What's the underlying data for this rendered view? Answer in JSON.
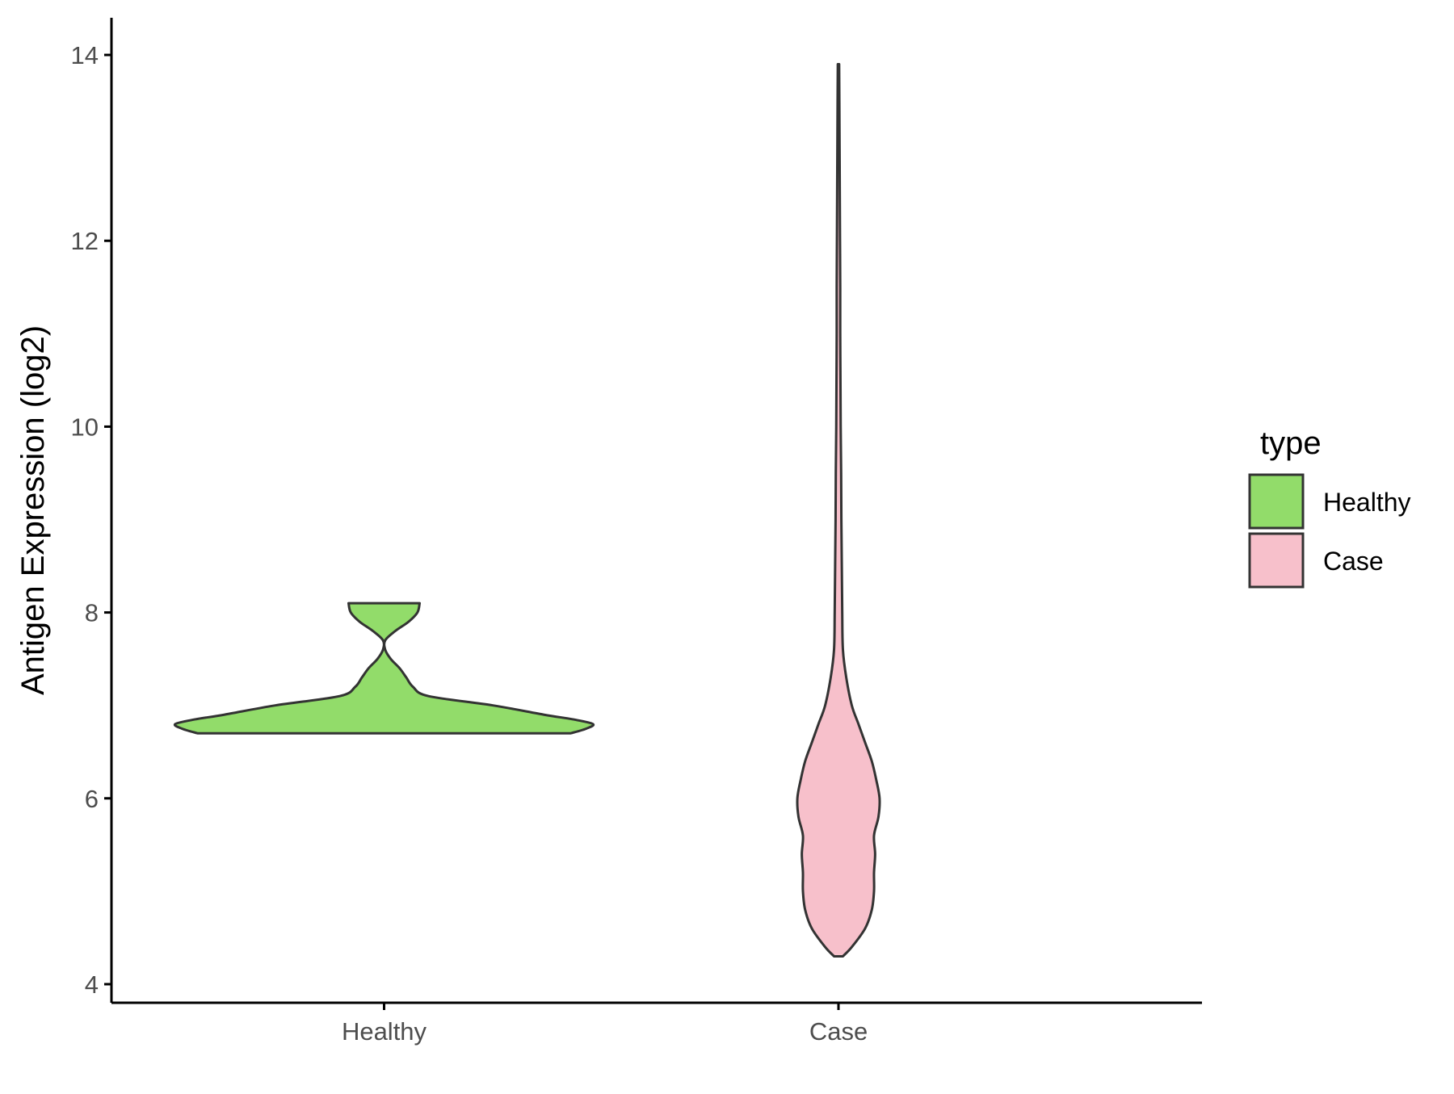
{
  "chart_data": {
    "type": "violin",
    "xlabel": "",
    "ylabel": "Antigen Expression (log2)",
    "ylim": [
      3.8,
      14.4
    ],
    "y_ticks": [
      4,
      6,
      8,
      10,
      12,
      14
    ],
    "categories": [
      "Healthy",
      "Case"
    ],
    "grid": false,
    "legend": {
      "title": "type",
      "placement": "right",
      "items": [
        {
          "label": "Healthy",
          "color": "#92dc6a"
        },
        {
          "label": "Case",
          "color": "#f7c0cb"
        }
      ]
    },
    "series": [
      {
        "name": "Healthy",
        "color": "#92dc6a",
        "min": 6.7,
        "max": 8.1,
        "density_profile": [
          [
            6.7,
            0.84
          ],
          [
            6.75,
            0.91
          ],
          [
            6.8,
            0.94
          ],
          [
            6.85,
            0.85
          ],
          [
            6.9,
            0.72
          ],
          [
            7.0,
            0.49
          ],
          [
            7.1,
            0.2
          ],
          [
            7.2,
            0.13
          ],
          [
            7.3,
            0.1
          ],
          [
            7.4,
            0.07
          ],
          [
            7.5,
            0.03
          ],
          [
            7.6,
            0.005
          ],
          [
            7.7,
            0.005
          ],
          [
            7.8,
            0.05
          ],
          [
            7.9,
            0.11
          ],
          [
            8.0,
            0.15
          ],
          [
            8.1,
            0.16
          ]
        ]
      },
      {
        "name": "Case",
        "color": "#f7c0cb",
        "min": 4.3,
        "max": 13.9,
        "density_profile": [
          [
            4.3,
            0.02
          ],
          [
            4.4,
            0.06
          ],
          [
            4.6,
            0.12
          ],
          [
            4.8,
            0.15
          ],
          [
            5.0,
            0.16
          ],
          [
            5.2,
            0.16
          ],
          [
            5.4,
            0.165
          ],
          [
            5.6,
            0.16
          ],
          [
            5.8,
            0.18
          ],
          [
            6.0,
            0.185
          ],
          [
            6.2,
            0.17
          ],
          [
            6.4,
            0.15
          ],
          [
            6.6,
            0.12
          ],
          [
            6.8,
            0.09
          ],
          [
            7.0,
            0.06
          ],
          [
            7.3,
            0.035
          ],
          [
            7.6,
            0.02
          ],
          [
            8.0,
            0.017
          ],
          [
            8.5,
            0.015
          ],
          [
            9.0,
            0.013
          ],
          [
            9.5,
            0.012
          ],
          [
            10.0,
            0.01
          ],
          [
            10.5,
            0.009
          ],
          [
            11.0,
            0.008
          ],
          [
            11.5,
            0.008
          ],
          [
            12.0,
            0.007
          ],
          [
            12.5,
            0.006
          ],
          [
            13.0,
            0.005
          ],
          [
            13.5,
            0.004
          ],
          [
            13.9,
            0.003
          ]
        ]
      }
    ]
  }
}
